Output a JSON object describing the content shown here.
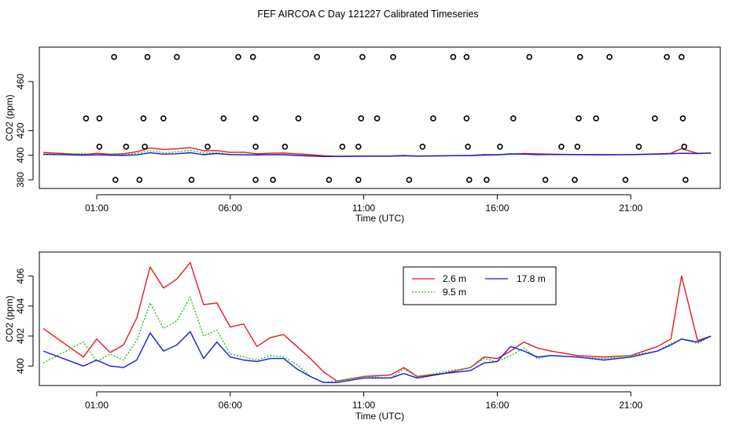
{
  "figure": {
    "title": "FEF AIRCOA C  Day 121227  Calibrated Timeseries"
  },
  "colors": {
    "red": "#e8181e",
    "green": "#18c418",
    "blue": "#1818e0",
    "axis": "#000000"
  },
  "chart_data": [
    {
      "id": "top",
      "type": "line",
      "xlabel": "Time (UTC)",
      "ylabel": "CO2 (ppm)",
      "xlim": [
        -1.15,
        24.35
      ],
      "ylim": [
        373,
        488
      ],
      "xticks": [
        1,
        6,
        11,
        16,
        21
      ],
      "xtick_labels": [
        "01:00",
        "06:00",
        "11:00",
        "16:00",
        "21:00"
      ],
      "yticks": [
        380,
        400,
        420,
        460
      ],
      "ytick_labels": [
        "380",
        "400",
        "420",
        "460"
      ],
      "bands": {
        "overflow": 480,
        "high": 430,
        "mid": 407,
        "low": 380
      },
      "outliers": [
        {
          "t": 1.1,
          "b": "mid"
        },
        {
          "t": 0.6,
          "b": "high"
        },
        {
          "t": 1.1,
          "b": "high"
        },
        {
          "t": 1.65,
          "b": "overflow"
        },
        {
          "t": 1.7,
          "b": "low"
        },
        {
          "t": 2.1,
          "b": "mid"
        },
        {
          "t": 2.6,
          "b": "low"
        },
        {
          "t": 2.75,
          "b": "high"
        },
        {
          "t": 2.8,
          "b": "mid"
        },
        {
          "t": 2.9,
          "b": "overflow"
        },
        {
          "t": 3.5,
          "b": "high"
        },
        {
          "t": 4.0,
          "b": "overflow"
        },
        {
          "t": 4.55,
          "b": "low"
        },
        {
          "t": 5.15,
          "b": "mid"
        },
        {
          "t": 5.75,
          "b": "high"
        },
        {
          "t": 6.3,
          "b": "overflow"
        },
        {
          "t": 6.85,
          "b": "overflow"
        },
        {
          "t": 6.95,
          "b": "high"
        },
        {
          "t": 6.95,
          "b": "mid"
        },
        {
          "t": 6.95,
          "b": "low"
        },
        {
          "t": 7.6,
          "b": "low"
        },
        {
          "t": 8.05,
          "b": "mid"
        },
        {
          "t": 8.55,
          "b": "high"
        },
        {
          "t": 9.25,
          "b": "overflow"
        },
        {
          "t": 9.7,
          "b": "low"
        },
        {
          "t": 10.2,
          "b": "mid"
        },
        {
          "t": 10.8,
          "b": "low"
        },
        {
          "t": 10.8,
          "b": "mid"
        },
        {
          "t": 10.9,
          "b": "high"
        },
        {
          "t": 10.95,
          "b": "overflow"
        },
        {
          "t": 11.5,
          "b": "high"
        },
        {
          "t": 12.1,
          "b": "overflow"
        },
        {
          "t": 12.7,
          "b": "low"
        },
        {
          "t": 13.2,
          "b": "mid"
        },
        {
          "t": 13.6,
          "b": "high"
        },
        {
          "t": 14.35,
          "b": "overflow"
        },
        {
          "t": 14.85,
          "b": "overflow"
        },
        {
          "t": 14.85,
          "b": "high"
        },
        {
          "t": 14.9,
          "b": "mid"
        },
        {
          "t": 14.95,
          "b": "low"
        },
        {
          "t": 15.6,
          "b": "low"
        },
        {
          "t": 16.1,
          "b": "mid"
        },
        {
          "t": 16.6,
          "b": "high"
        },
        {
          "t": 17.2,
          "b": "overflow"
        },
        {
          "t": 17.8,
          "b": "low"
        },
        {
          "t": 18.4,
          "b": "mid"
        },
        {
          "t": 18.9,
          "b": "low"
        },
        {
          "t": 19.0,
          "b": "mid"
        },
        {
          "t": 19.05,
          "b": "high"
        },
        {
          "t": 19.1,
          "b": "overflow"
        },
        {
          "t": 19.7,
          "b": "high"
        },
        {
          "t": 20.2,
          "b": "overflow"
        },
        {
          "t": 20.8,
          "b": "low"
        },
        {
          "t": 21.3,
          "b": "mid"
        },
        {
          "t": 21.9,
          "b": "high"
        },
        {
          "t": 22.35,
          "b": "overflow"
        },
        {
          "t": 22.9,
          "b": "overflow"
        },
        {
          "t": 22.95,
          "b": "high"
        },
        {
          "t": 23.0,
          "b": "mid"
        },
        {
          "t": 23.05,
          "b": "low"
        }
      ]
    },
    {
      "id": "bottom",
      "type": "line",
      "xlabel": "Time (UTC)",
      "ylabel": "CO2 (ppm)",
      "xlim": [
        -1.15,
        24.35
      ],
      "ylim": [
        398.7,
        407.6
      ],
      "xticks": [
        1,
        6,
        11,
        16,
        21
      ],
      "xtick_labels": [
        "01:00",
        "06:00",
        "11:00",
        "16:00",
        "21:00"
      ],
      "yticks": [
        400,
        402,
        404,
        406
      ],
      "ytick_labels": [
        "400",
        "402",
        "404",
        "406"
      ],
      "legend": {
        "placement": "top-right-center",
        "entries": [
          "2.6 m",
          "17.8 m",
          "9.5 m"
        ]
      },
      "series": [
        {
          "name": "2.6 m",
          "color": "#e8181e",
          "dash": "",
          "t": [
            -1,
            0.5,
            1,
            1.5,
            2,
            2.5,
            3,
            3.5,
            4,
            4.5,
            5,
            5.5,
            6,
            6.5,
            7,
            7.5,
            8,
            8.5,
            9,
            9.5,
            10,
            11,
            12,
            12.5,
            13,
            14,
            15,
            15.5,
            16,
            16.5,
            17,
            17.5,
            18,
            19,
            20,
            21,
            22,
            22.5,
            22.9,
            23.5,
            24
          ],
          "v": [
            402.5,
            400.6,
            401.8,
            400.9,
            401.4,
            403.2,
            406.6,
            405.2,
            405.8,
            406.9,
            404.1,
            404.2,
            402.6,
            402.8,
            401.3,
            401.9,
            402.1,
            401.3,
            400.5,
            399.6,
            399.0,
            399.3,
            399.4,
            399.9,
            399.3,
            399.5,
            399.9,
            400.6,
            400.5,
            401.0,
            401.6,
            401.2,
            401.0,
            400.7,
            400.6,
            400.7,
            401.3,
            401.8,
            406.0,
            401.7,
            402.0
          ]
        },
        {
          "name": "9.5 m",
          "color": "#18c418",
          "dash": "2 2",
          "t": [
            -1,
            0.5,
            1,
            1.5,
            2,
            2.5,
            3,
            3.5,
            4,
            4.5,
            5,
            5.5,
            6,
            6.5,
            7,
            7.5,
            8,
            8.5,
            9,
            9.5,
            10,
            11,
            12,
            12.5,
            13,
            14,
            15,
            15.5,
            16,
            16.5,
            17,
            17.5,
            18,
            19,
            20,
            21,
            22,
            22.5,
            22.9,
            23.5,
            24
          ],
          "v": [
            400.2,
            401.6,
            400.3,
            400.8,
            400.4,
            401.7,
            404.2,
            402.5,
            403.0,
            404.6,
            402.0,
            402.4,
            400.8,
            400.6,
            400.4,
            400.7,
            400.6,
            400.1,
            399.3,
            398.9,
            399.0,
            399.3,
            399.2,
            399.8,
            399.3,
            399.6,
            399.9,
            400.5,
            400.3,
            400.7,
            401.2,
            400.5,
            400.7,
            400.6,
            400.5,
            400.7,
            401.0,
            401.5,
            401.8,
            401.5,
            402.0
          ]
        },
        {
          "name": "17.8 m",
          "color": "#1818e0",
          "dash": "",
          "t": [
            -1,
            0.5,
            1,
            1.5,
            2,
            2.5,
            3,
            3.5,
            4,
            4.5,
            5,
            5.5,
            6,
            6.5,
            7,
            7.5,
            8,
            8.5,
            9,
            9.5,
            10,
            11,
            12,
            12.5,
            13,
            14,
            15,
            15.5,
            16,
            16.5,
            17,
            17.5,
            18,
            19,
            20,
            21,
            22,
            22.5,
            22.9,
            23.5,
            24
          ],
          "v": [
            401.0,
            400.0,
            400.4,
            400.0,
            399.9,
            400.4,
            402.2,
            401.0,
            401.4,
            402.3,
            400.5,
            401.6,
            400.6,
            400.4,
            400.3,
            400.5,
            400.5,
            399.8,
            399.3,
            398.9,
            398.9,
            399.2,
            399.2,
            399.5,
            399.2,
            399.5,
            399.7,
            400.2,
            400.3,
            401.3,
            401.0,
            400.6,
            400.7,
            400.6,
            400.4,
            400.6,
            401.0,
            401.4,
            401.8,
            401.6,
            402.0
          ]
        }
      ]
    }
  ]
}
